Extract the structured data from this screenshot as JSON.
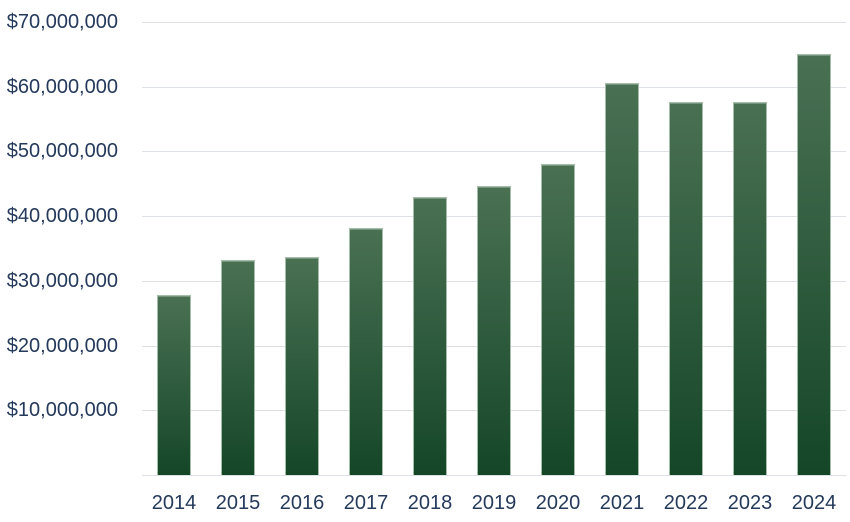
{
  "chart_data": {
    "type": "bar",
    "title": "",
    "xlabel": "",
    "ylabel": "",
    "categories": [
      "2014",
      "2015",
      "2016",
      "2017",
      "2018",
      "2019",
      "2020",
      "2021",
      "2022",
      "2023",
      "2024"
    ],
    "values": [
      27800000,
      33200000,
      33700000,
      38100000,
      43000000,
      44700000,
      48000000,
      60600000,
      57700000,
      57600000,
      65100000
    ],
    "ylim": [
      0,
      70000000
    ],
    "grid": true,
    "legend": false,
    "y_ticks": [
      {
        "value": 70000000,
        "label": "$70,000,000"
      },
      {
        "value": 60000000,
        "label": "$60,000,000"
      },
      {
        "value": 50000000,
        "label": "$50,000,000"
      },
      {
        "value": 40000000,
        "label": "$40,000,000"
      },
      {
        "value": 30000000,
        "label": "$30,000,000"
      },
      {
        "value": 20000000,
        "label": "$20,000,000"
      },
      {
        "value": 10000000,
        "label": "$10,000,000"
      }
    ],
    "colors": {
      "bar_gradient_top": "#4a7053",
      "bar_gradient_bottom": "#154628",
      "bar_border": "#a3bda9",
      "gridline": "#dde1e6",
      "label_text": "#24395b",
      "background": "#ffffff"
    }
  }
}
